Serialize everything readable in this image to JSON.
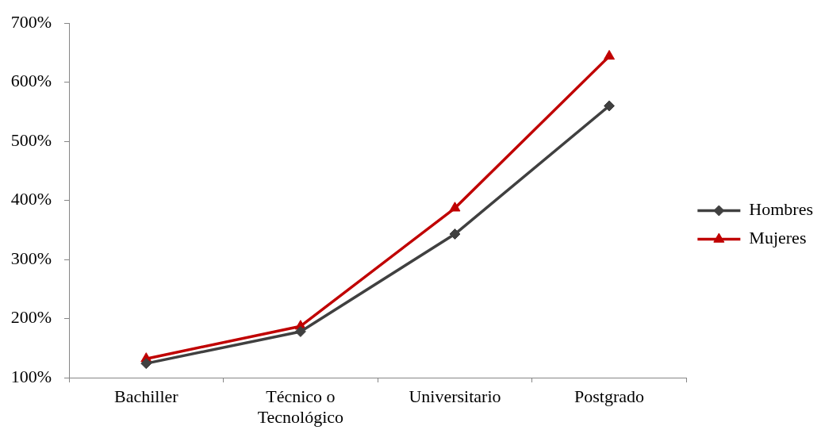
{
  "chart_data": {
    "type": "line",
    "categories": [
      "Bachiller",
      "Técnico o Tecnológico",
      "Universitario",
      "Postgrado"
    ],
    "series": [
      {
        "name": "Hombres",
        "color": "#404040",
        "marker": "diamond",
        "values": [
          124,
          178,
          343,
          560
        ]
      },
      {
        "name": "Mujeres",
        "color": "#c00000",
        "marker": "triangle",
        "values": [
          132,
          187,
          387,
          644
        ]
      }
    ],
    "ylim": [
      100,
      700
    ],
    "yticks": [
      {
        "value": 100,
        "label": "100%"
      },
      {
        "value": 200,
        "label": "200%"
      },
      {
        "value": 300,
        "label": "300%"
      },
      {
        "value": 400,
        "label": "400%"
      },
      {
        "value": 500,
        "label": "500%"
      },
      {
        "value": 600,
        "label": "600%"
      },
      {
        "value": 700,
        "label": "700%"
      }
    ],
    "grid": false,
    "legend": "right",
    "line_style": "solid"
  }
}
